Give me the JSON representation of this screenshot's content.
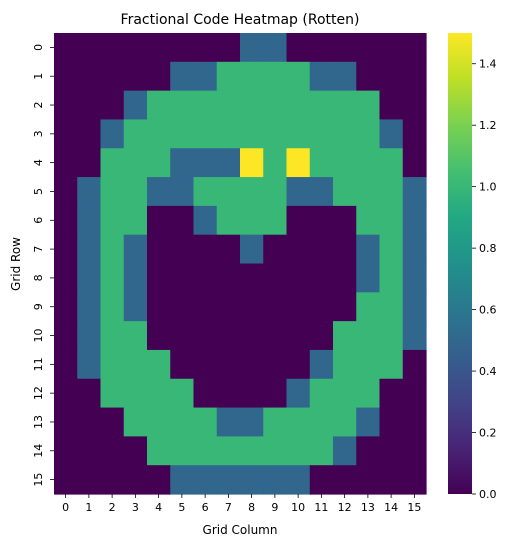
{
  "chart_data": {
    "type": "heatmap",
    "title": "Fractional Code Heatmap (Rotten)",
    "xlabel": "Grid Column",
    "ylabel": "Grid Row",
    "x_ticks": [
      "0",
      "1",
      "2",
      "3",
      "4",
      "5",
      "6",
      "7",
      "8",
      "9",
      "10",
      "11",
      "12",
      "13",
      "14",
      "15"
    ],
    "y_ticks": [
      "0",
      "1",
      "2",
      "3",
      "4",
      "5",
      "6",
      "7",
      "8",
      "9",
      "10",
      "11",
      "12",
      "13",
      "14",
      "15"
    ],
    "colorbar": {
      "colormap": "viridis",
      "vmin": 0.0,
      "vmax": 1.5,
      "ticks": [
        0.0,
        0.2,
        0.4,
        0.6,
        0.8,
        1.0,
        1.2,
        1.4
      ],
      "tick_labels": [
        "0.0",
        "0.2",
        "0.4",
        "0.6",
        "0.8",
        "1.0",
        "1.2",
        "1.4"
      ]
    },
    "grid": false,
    "values": [
      [
        0,
        0,
        0,
        0,
        0,
        0,
        0,
        0,
        0.5,
        0.5,
        0,
        0,
        0,
        0,
        0,
        0
      ],
      [
        0,
        0,
        0,
        0,
        0,
        0.5,
        0.5,
        1,
        1,
        1,
        1,
        0.5,
        0.5,
        0,
        0,
        0
      ],
      [
        0,
        0,
        0,
        0.5,
        1,
        1,
        1,
        1,
        1,
        1,
        1,
        1,
        1,
        1,
        0,
        0
      ],
      [
        0,
        0,
        0.5,
        1,
        1,
        1,
        1,
        1,
        1,
        1,
        1,
        1,
        1,
        1,
        0.5,
        0
      ],
      [
        0,
        0,
        1,
        1,
        1,
        0.5,
        0.5,
        0.5,
        1.5,
        1,
        1.5,
        1,
        1,
        1,
        1,
        0
      ],
      [
        0,
        0.5,
        1,
        1,
        0.5,
        0.5,
        1,
        1,
        1,
        1,
        0.5,
        0.5,
        1,
        1,
        1,
        0.5
      ],
      [
        0,
        0.5,
        1,
        1,
        0,
        0,
        0.5,
        1,
        1,
        1,
        0,
        0,
        0,
        1,
        1,
        0.5
      ],
      [
        0,
        0.5,
        1,
        0.5,
        0,
        0,
        0,
        0,
        0.5,
        0,
        0,
        0,
        0,
        0.5,
        1,
        0.5
      ],
      [
        0,
        0.5,
        1,
        0.5,
        0,
        0,
        0,
        0,
        0,
        0,
        0,
        0,
        0,
        0.5,
        1,
        0.5
      ],
      [
        0,
        0.5,
        1,
        0.5,
        0,
        0,
        0,
        0,
        0,
        0,
        0,
        0,
        0,
        1,
        1,
        0.5
      ],
      [
        0,
        0.5,
        1,
        1,
        0,
        0,
        0,
        0,
        0,
        0,
        0,
        0,
        1,
        1,
        1,
        0.5
      ],
      [
        0,
        0.5,
        1,
        1,
        1,
        0,
        0,
        0,
        0,
        0,
        0,
        0.5,
        1,
        1,
        1,
        0
      ],
      [
        0,
        0,
        1,
        1,
        1,
        1,
        0,
        0,
        0,
        0,
        0.5,
        1,
        1,
        1,
        0,
        0
      ],
      [
        0,
        0,
        0,
        1,
        1,
        1,
        1,
        0.5,
        0.5,
        1,
        1,
        1,
        1,
        0.5,
        0,
        0
      ],
      [
        0,
        0,
        0,
        0,
        1,
        1,
        1,
        1,
        1,
        1,
        1,
        1,
        0.5,
        0,
        0,
        0
      ],
      [
        0,
        0,
        0,
        0,
        0,
        0.5,
        0.5,
        0.5,
        0.5,
        0.5,
        0.5,
        0,
        0,
        0,
        0,
        0
      ]
    ]
  }
}
